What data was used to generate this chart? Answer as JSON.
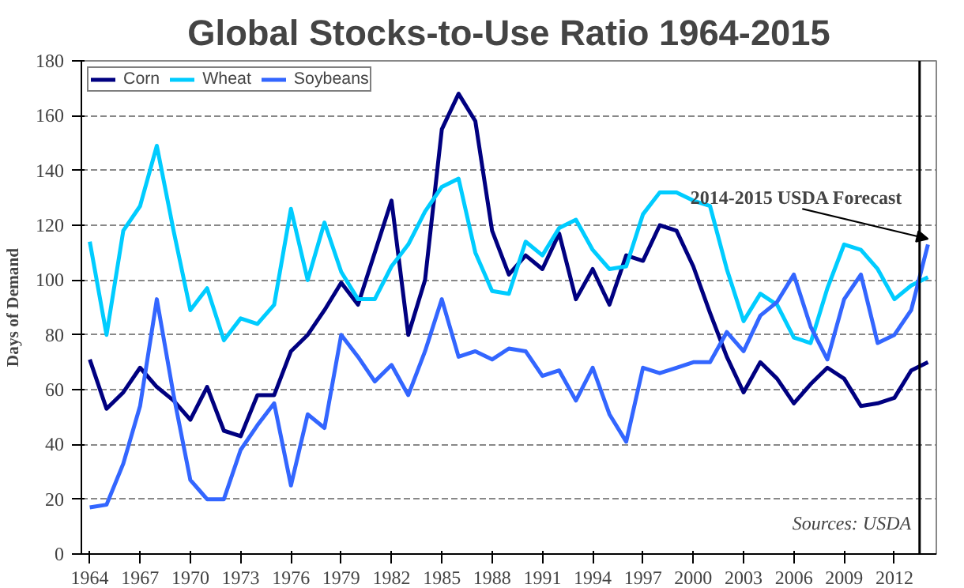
{
  "chart_data": {
    "type": "line",
    "title": "Global Stocks-to-Use Ratio 1964-2015",
    "ylabel": "Days of Demand",
    "x": [
      1964,
      1965,
      1966,
      1967,
      1968,
      1969,
      1970,
      1971,
      1972,
      1973,
      1974,
      1975,
      1976,
      1977,
      1978,
      1979,
      1980,
      1981,
      1982,
      1983,
      1984,
      1985,
      1986,
      1987,
      1988,
      1989,
      1990,
      1991,
      1992,
      1993,
      1994,
      1995,
      1996,
      1997,
      1998,
      1999,
      2000,
      2001,
      2002,
      2003,
      2004,
      2005,
      2006,
      2007,
      2008,
      2009,
      2010,
      2011,
      2012,
      2013,
      2014
    ],
    "series": [
      {
        "name": "Corn",
        "color": "#000080",
        "values": [
          71,
          53,
          59,
          68,
          61,
          56,
          49,
          61,
          45,
          43,
          58,
          58,
          74,
          80,
          89,
          99,
          91,
          110,
          129,
          80,
          100,
          155,
          168,
          158,
          118,
          102,
          109,
          104,
          117,
          93,
          104,
          91,
          109,
          107,
          120,
          118,
          105,
          88,
          72,
          59,
          70,
          64,
          55,
          62,
          68,
          64,
          54,
          55,
          57,
          67,
          70
        ]
      },
      {
        "name": "Wheat",
        "color": "#00ccff",
        "values": [
          114,
          80,
          118,
          127,
          149,
          118,
          89,
          97,
          78,
          86,
          84,
          91,
          126,
          100,
          121,
          103,
          93,
          93,
          105,
          113,
          125,
          134,
          137,
          110,
          96,
          95,
          114,
          109,
          119,
          122,
          111,
          104,
          105,
          124,
          132,
          132,
          129,
          127,
          104,
          85,
          95,
          91,
          79,
          77,
          97,
          113,
          111,
          104,
          93,
          98,
          101
        ]
      },
      {
        "name": "Soybeans",
        "color": "#3366ff",
        "values": [
          17,
          18,
          33,
          54,
          93,
          58,
          27,
          20,
          20,
          38,
          47,
          55,
          25,
          51,
          46,
          80,
          72,
          63,
          69,
          58,
          74,
          93,
          72,
          74,
          71,
          75,
          74,
          65,
          67,
          56,
          68,
          51,
          41,
          68,
          66,
          68,
          70,
          70,
          81,
          74,
          87,
          92,
          102,
          83,
          71,
          93,
          102,
          77,
          80,
          89,
          113
        ]
      }
    ],
    "xlim": [
      1963.5,
      2014.5
    ],
    "xticks": [
      1964,
      1967,
      1970,
      1973,
      1976,
      1979,
      1982,
      1985,
      1988,
      1991,
      1994,
      1997,
      2000,
      2003,
      2006,
      2009,
      2012
    ],
    "ylim": [
      0,
      180
    ],
    "yticks": [
      0,
      20,
      40,
      60,
      80,
      100,
      120,
      140,
      160,
      180
    ],
    "grid": "y",
    "legend": "top left",
    "line_style": "solid",
    "marker": "none",
    "ref_lines": [
      {
        "axis": "x",
        "value": 2013.5,
        "color": "#000000"
      }
    ],
    "annotations": [
      {
        "text": "2014-2015 USDA Forecast",
        "x": 2014,
        "y": 113
      },
      "Sources: USDA"
    ]
  }
}
